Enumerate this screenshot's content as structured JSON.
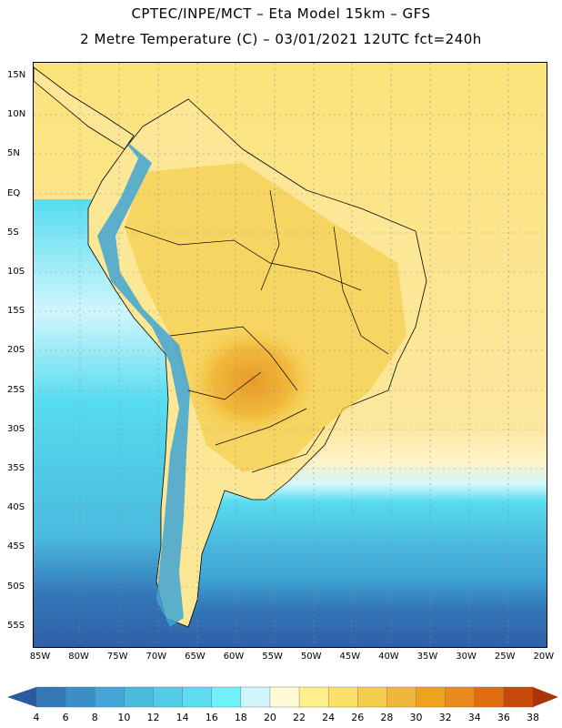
{
  "header": {
    "line1": "CPTEC/INPE/MCT –  Eta Model 15km – GFS",
    "line2": "2 Metre Temperature (C) – 03/01/2021 12UTC fct=240h"
  },
  "map": {
    "lat_labels": [
      "15N",
      "10N",
      "5N",
      "EQ",
      "5S",
      "10S",
      "15S",
      "20S",
      "25S",
      "30S",
      "35S",
      "40S",
      "45S",
      "50S",
      "55S"
    ],
    "lon_labels": [
      "85W",
      "80W",
      "75W",
      "70W",
      "65W",
      "60W",
      "55W",
      "50W",
      "45W",
      "40W",
      "35W",
      "30W",
      "25W",
      "20W"
    ],
    "colors": {
      "ocean_deep": "#2d5fa8",
      "ocean_mid": "#3fa4d4",
      "ocean_cyan": "#56dcef",
      "warm_pale": "#fff3c8",
      "warm_yellow": "#fbe37a",
      "warm_gold": "#f2c544",
      "warm_orange": "#e99a2a",
      "andes_blue": "#3a7fbf"
    }
  },
  "colorbar": {
    "labels": [
      "4",
      "6",
      "8",
      "10",
      "12",
      "14",
      "16",
      "18",
      "20",
      "22",
      "24",
      "26",
      "28",
      "30",
      "32",
      "34",
      "36",
      "38"
    ],
    "colors": [
      "#2a5aa0",
      "#3377b7",
      "#3a8fc7",
      "#43a6d6",
      "#4bbadf",
      "#53cce8",
      "#5ddcf0",
      "#6ff0fb",
      "#d0f6fc",
      "#fff9d6",
      "#fdf08a",
      "#fbe06a",
      "#f5cd4c",
      "#f0b83a",
      "#eea31c",
      "#e88a1e",
      "#e06c10",
      "#c74a0a",
      "#a8350a"
    ]
  }
}
